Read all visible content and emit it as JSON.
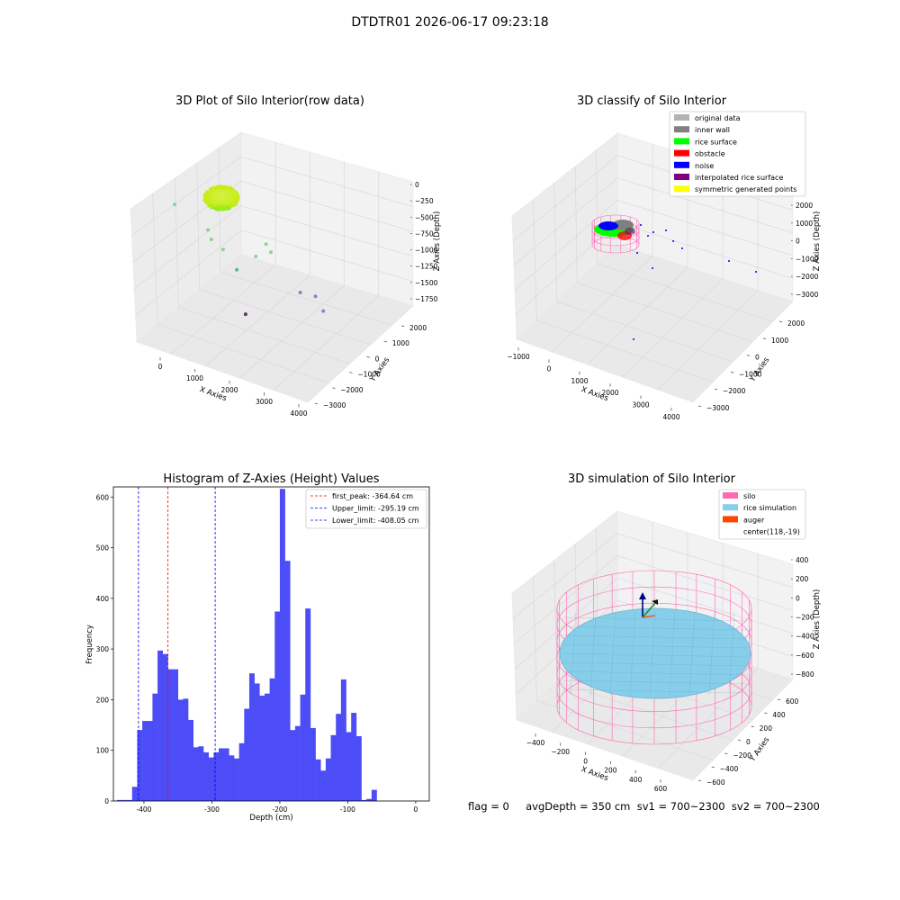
{
  "figure": {
    "suptitle": "DTDTR01 2026-06-17 09:23:18",
    "footer": "flag = 0     avgDepth = 350 cm  sv1 = 700~2300  sv2 = 700~2300"
  },
  "colors": {
    "hist_bar": "#4d4df7",
    "peak_line": "#ff0000",
    "limit_line": "#0000ff",
    "silo_pink": "#ff69b4",
    "rice_sky": "#87ceeb",
    "auger_orange": "#ff4500",
    "navy": "#000080",
    "pane": "#f2f2f2",
    "grid": "#d9d9d9"
  },
  "chart_data": [
    {
      "id": "raw",
      "type": "scatter",
      "title": "3D Plot of Silo Interior(row data)",
      "xlabel": "X Axies",
      "ylabel": "Y Axies",
      "zlabel": "Z Axies (Depth)",
      "xticks": [
        "0",
        "1000",
        "2000",
        "3000",
        "4000"
      ],
      "yticks": [
        "2000",
        "1000",
        "0",
        "−1000",
        "−2000",
        "−3000"
      ],
      "zticks": [
        "0",
        "−250",
        "−500",
        "−750",
        "−1000",
        "−1250",
        "−1500",
        "−1750"
      ],
      "points": [
        {
          "x": 60,
          "y": 280,
          "z": -150
        },
        {
          "x": 900,
          "y": -300,
          "z": -520
        },
        {
          "x": 1100,
          "y": 200,
          "z": -700
        },
        {
          "x": 1400,
          "y": 0,
          "z": -850
        },
        {
          "x": 1900,
          "y": 500,
          "z": -1200
        },
        {
          "x": 2300,
          "y": -200,
          "z": -950
        },
        {
          "x": 2700,
          "y": 300,
          "z": -780
        },
        {
          "x": 2800,
          "y": 100,
          "z": -900
        },
        {
          "x": 3500,
          "y": -600,
          "z": -1500
        },
        {
          "x": 3900,
          "y": -800,
          "z": -1550
        },
        {
          "x": 4000,
          "y": -1400,
          "z": -1750
        },
        {
          "x": 2300,
          "y": 1200,
          "z": -1950
        }
      ]
    },
    {
      "id": "classify",
      "type": "scatter",
      "title": "3D classify of Silo Interior",
      "xlabel": "X Axies",
      "ylabel": "Y Axies",
      "zlabel": "Z Axies (Depth)",
      "xticks": [
        "−1000",
        "0",
        "1000",
        "2000",
        "3000",
        "4000"
      ],
      "yticks": [
        "2000",
        "1000",
        "0",
        "−1000",
        "−2000",
        "−3000"
      ],
      "zticks": [
        "2000",
        "1000",
        "0",
        "−1000",
        "−2000",
        "−3000"
      ],
      "legend": [
        {
          "label": "original data",
          "color": "#b3b3b3"
        },
        {
          "label": "inner wall",
          "color": "#808080"
        },
        {
          "label": "rice surface",
          "color": "#00ff00"
        },
        {
          "label": "obstacle",
          "color": "#ff0000"
        },
        {
          "label": "noise",
          "color": "#0000ff"
        },
        {
          "label": "interpolated rice surface",
          "color": "#800080"
        },
        {
          "label": "symmetric generated points",
          "color": "#ffff00"
        }
      ]
    },
    {
      "id": "hist",
      "type": "bar",
      "title": "Histogram of Z-Axies (Height) Values",
      "xlabel": "Depth (cm)",
      "ylabel": "Frequency",
      "xlim": [
        -445,
        20
      ],
      "ylim": [
        0,
        620
      ],
      "bin_start": -440,
      "bin_width": 7.5,
      "counts": [
        2,
        2,
        2,
        28,
        140,
        158,
        158,
        212,
        297,
        290,
        260,
        260,
        200,
        202,
        160,
        106,
        108,
        96,
        86,
        96,
        104,
        104,
        90,
        84,
        114,
        182,
        252,
        232,
        208,
        212,
        242,
        374,
        616,
        474,
        140,
        148,
        210,
        380,
        144,
        82,
        60,
        84,
        130,
        172,
        240,
        136,
        174,
        128,
        2,
        4,
        22
      ],
      "xticks": [
        -400,
        -300,
        -200,
        -100,
        0
      ],
      "yticks": [
        0,
        100,
        200,
        300,
        400,
        500,
        600
      ],
      "lines": [
        {
          "label": "first_peak: -364.64 cm",
          "x": -364.64,
          "color": "#ff0000"
        },
        {
          "label": "Upper_limit: -295.19 cm",
          "x": -295.19,
          "color": "#0000ff"
        },
        {
          "label": "Lower_limit: -408.05 cm",
          "x": -408.05,
          "color": "#0000ff"
        }
      ]
    },
    {
      "id": "simulation",
      "type": "scatter",
      "title": "3D simulation of Silo Interior",
      "xlabel": "X Axies",
      "ylabel": "Y Axies",
      "zlabel": "Z Axies (Depth)",
      "xticks": [
        "−400",
        "−200",
        "0",
        "200",
        "400",
        "600"
      ],
      "yticks": [
        "600",
        "400",
        "200",
        "0",
        "−200",
        "−400",
        "−600"
      ],
      "zticks": [
        "400",
        "200",
        "0",
        "−200",
        "−400",
        "−600",
        "−800"
      ],
      "legend": [
        {
          "label": "silo",
          "color": "#ff69b4"
        },
        {
          "label": "rice simulation",
          "color": "#87ceeb"
        },
        {
          "label": "auger",
          "color": "#ff4500"
        },
        {
          "label": "center(118,-19)",
          "color": ""
        }
      ]
    }
  ]
}
